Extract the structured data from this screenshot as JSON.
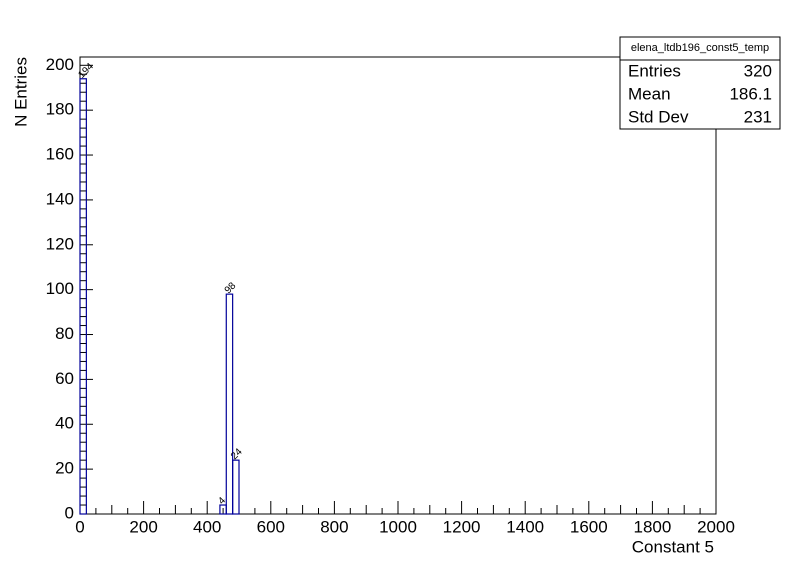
{
  "chart_data": {
    "type": "histogram",
    "x_label": "Constant 5",
    "y_label": "N Entries",
    "bins": [
      0,
      20,
      40,
      60,
      80,
      100,
      120,
      140,
      160,
      180,
      200,
      220,
      240,
      260,
      280,
      300,
      320,
      340,
      360,
      380,
      400,
      420,
      440,
      460,
      480,
      500,
      520,
      540,
      560,
      580,
      600,
      620,
      640,
      660,
      680,
      700,
      720,
      740,
      760,
      780,
      800,
      820,
      840,
      860,
      880,
      900,
      920,
      940,
      960,
      980,
      1000,
      1020,
      1040,
      1060,
      1080,
      1100,
      1120,
      1140,
      1160,
      1180,
      1200,
      1220,
      1240,
      1260,
      1280,
      1300,
      1320,
      1340,
      1360,
      1380,
      1400,
      1420,
      1440,
      1460,
      1480,
      1500,
      1520,
      1540,
      1560,
      1580,
      1600,
      1620,
      1640,
      1660,
      1680,
      1700,
      1720,
      1740,
      1760,
      1780,
      1800,
      1820,
      1840,
      1860,
      1880,
      1900,
      1920,
      1940,
      1960,
      1980,
      2000
    ],
    "values": [
      194,
      0,
      0,
      0,
      0,
      0,
      0,
      0,
      0,
      0,
      0,
      0,
      0,
      0,
      0,
      0,
      0,
      0,
      0,
      0,
      0,
      0,
      4,
      98,
      24,
      0,
      0,
      0,
      0,
      0,
      0,
      0,
      0,
      0,
      0,
      0,
      0,
      0,
      0,
      0,
      0,
      0,
      0,
      0,
      0,
      0,
      0,
      0,
      0,
      0,
      0,
      0,
      0,
      0,
      0,
      0,
      0,
      0,
      0,
      0,
      0,
      0,
      0,
      0,
      0,
      0,
      0,
      0,
      0,
      0,
      0,
      0,
      0,
      0,
      0,
      0,
      0,
      0,
      0,
      0,
      0,
      0,
      0,
      0,
      0,
      0,
      0,
      0,
      0,
      0,
      0,
      0,
      0,
      0,
      0,
      0,
      0,
      0,
      0,
      0
    ],
    "color": "#000099",
    "xlim": [
      0,
      2000
    ],
    "xticks": [
      0,
      200,
      400,
      600,
      800,
      1000,
      1200,
      1400,
      1600,
      1800,
      2000
    ],
    "ylim": [
      0,
      203.7
    ],
    "yticks": [
      0,
      20,
      40,
      60,
      80,
      100,
      120,
      140,
      160,
      180,
      200
    ],
    "stats": {
      "title": "elena_ltdb196_const5_temp",
      "rows": [
        {
          "label": "Entries",
          "value": 320
        },
        {
          "label": "Mean",
          "value": 186.1
        },
        {
          "label": "Std Dev",
          "value": 231
        }
      ]
    }
  }
}
